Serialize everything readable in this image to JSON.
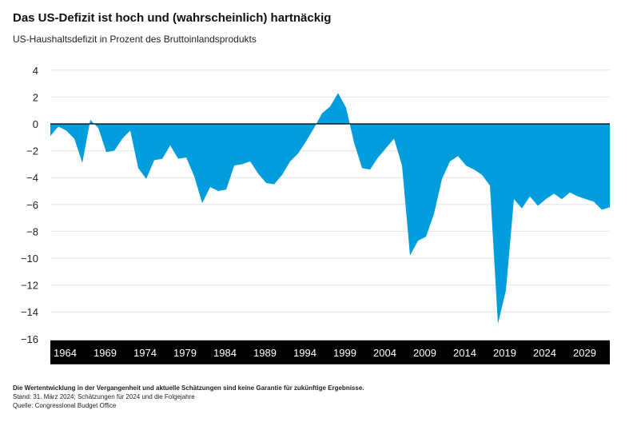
{
  "title": "Das US-Defizit ist hoch und (wahrscheinlich) hartnäckig",
  "subtitle": "US-Haushaltsdefizit in Prozent des Bruttoinlandsprodukts",
  "footer": {
    "disclaimer": "Die Wertentwicklung in der Vergangenheit und aktuelle Schätzungen sind keine Garantie für zukünftige Ergebnisse.",
    "stand": "Stand: 31. März 2024; Schätzungen für 2024 und die Folgejahre",
    "source": "Quelle: Congressional Budget Office"
  },
  "chart_data": {
    "type": "area",
    "title": "Das US-Defizit ist hoch und (wahrscheinlich) hartnäckig",
    "subtitle": "US-Haushaltsdefizit in Prozent des Bruttoinlandsprodukts",
    "xlabel": "",
    "ylabel": "",
    "xlim": [
      1964,
      2034
    ],
    "ylim": [
      -16,
      4
    ],
    "y_ticks": [
      4,
      2,
      0,
      -2,
      -4,
      -6,
      -8,
      -10,
      -12,
      -14,
      -16
    ],
    "y_tick_labels": [
      "4",
      "2",
      "0",
      "−2",
      "−4",
      "−6",
      "−8",
      "−10",
      "−12",
      "−14",
      "−16"
    ],
    "x_ticks": [
      "1964",
      "1969",
      "1974",
      "1979",
      "1984",
      "1989",
      "1994",
      "1999",
      "2004",
      "2009",
      "2014",
      "2019",
      "2024",
      "2029",
      "2034"
    ],
    "grid": true,
    "colors": {
      "fill": "#009ddc",
      "axis_band": "#000000",
      "grid": "#e3e3e3"
    },
    "x": [
      1964,
      1965,
      1966,
      1967,
      1968,
      1969,
      1970,
      1971,
      1972,
      1973,
      1974,
      1975,
      1976,
      1977,
      1978,
      1979,
      1980,
      1981,
      1982,
      1983,
      1984,
      1985,
      1986,
      1987,
      1988,
      1989,
      1990,
      1991,
      1992,
      1993,
      1994,
      1995,
      1996,
      1997,
      1998,
      1999,
      2000,
      2001,
      2002,
      2003,
      2004,
      2005,
      2006,
      2007,
      2008,
      2009,
      2010,
      2011,
      2012,
      2013,
      2014,
      2015,
      2016,
      2017,
      2018,
      2019,
      2020,
      2021,
      2022,
      2023,
      2024,
      2025,
      2026,
      2027,
      2028,
      2029,
      2030,
      2031,
      2032,
      2033,
      2034
    ],
    "values": [
      -0.9,
      -0.2,
      -0.5,
      -1.1,
      -2.9,
      0.3,
      -0.3,
      -2.1,
      -2.0,
      -1.1,
      -0.5,
      -3.3,
      -4.1,
      -2.7,
      -2.6,
      -1.6,
      -2.6,
      -2.5,
      -3.9,
      -5.9,
      -4.7,
      -5.0,
      -4.9,
      -3.1,
      -3.0,
      -2.8,
      -3.7,
      -4.4,
      -4.5,
      -3.8,
      -2.8,
      -2.2,
      -1.3,
      -0.3,
      0.8,
      1.3,
      2.3,
      1.2,
      -1.4,
      -3.3,
      -3.4,
      -2.5,
      -1.8,
      -1.1,
      -3.1,
      -9.8,
      -8.7,
      -8.4,
      -6.7,
      -4.1,
      -2.8,
      -2.4,
      -3.1,
      -3.4,
      -3.8,
      -4.6,
      -14.9,
      -12.4,
      -5.6,
      -6.3,
      -5.4,
      -6.1,
      -5.6,
      -5.2,
      -5.6,
      -5.1,
      -5.4,
      -5.6,
      -5.8,
      -6.4,
      -6.2
    ]
  }
}
